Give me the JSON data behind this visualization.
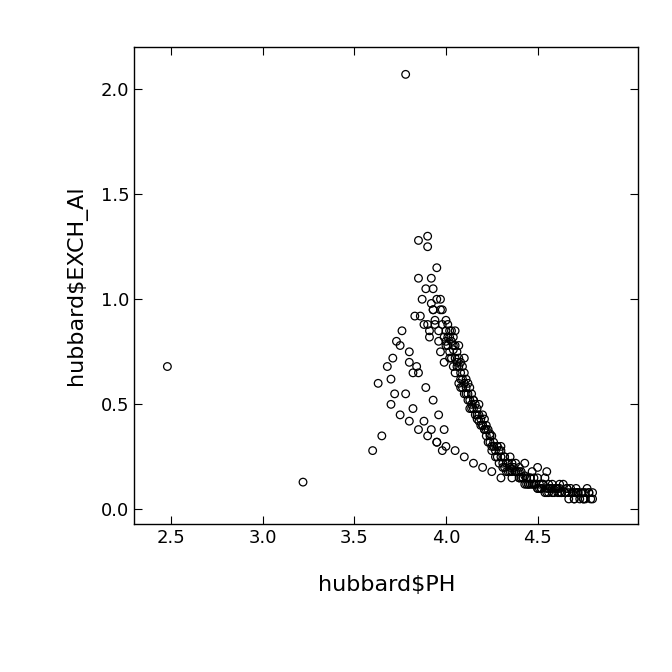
{
  "xlabel": "hubbard$PH",
  "ylabel": "hubbard$EXCH_Al",
  "xlim": [
    2.3,
    5.05
  ],
  "ylim": [
    -0.07,
    2.2
  ],
  "xticks": [
    2.5,
    3.0,
    3.5,
    4.0,
    4.5
  ],
  "yticks": [
    0.0,
    0.5,
    1.0,
    1.5,
    2.0
  ],
  "background_color": "#ffffff",
  "marker_facecolor": "none",
  "marker_edgecolor": "#000000",
  "marker_size": 5.5,
  "marker_linewidth": 0.9,
  "xlabel_fontsize": 16,
  "ylabel_fontsize": 16,
  "tick_fontsize": 13,
  "x": [
    2.48,
    3.22,
    3.6,
    3.65,
    3.7,
    3.72,
    3.75,
    3.78,
    3.8,
    3.82,
    3.83,
    3.85,
    3.85,
    3.87,
    3.88,
    3.89,
    3.9,
    3.9,
    3.91,
    3.92,
    3.92,
    3.93,
    3.93,
    3.94,
    3.95,
    3.95,
    3.96,
    3.97,
    3.97,
    3.98,
    3.98,
    3.99,
    4.0,
    4.0,
    4.0,
    4.01,
    4.01,
    4.02,
    4.02,
    4.02,
    4.03,
    4.03,
    4.04,
    4.04,
    4.05,
    4.05,
    4.05,
    4.06,
    4.06,
    4.07,
    4.07,
    4.07,
    4.08,
    4.08,
    4.09,
    4.09,
    4.1,
    4.1,
    4.1,
    4.11,
    4.11,
    4.12,
    4.12,
    4.13,
    4.13,
    4.14,
    4.14,
    4.15,
    4.15,
    4.16,
    4.17,
    4.17,
    4.18,
    4.18,
    4.19,
    4.2,
    4.2,
    4.21,
    4.21,
    4.22,
    4.22,
    4.23,
    4.24,
    4.24,
    4.25,
    4.25,
    4.26,
    4.27,
    4.28,
    4.28,
    4.29,
    4.3,
    4.3,
    4.31,
    4.32,
    4.32,
    4.33,
    4.34,
    4.35,
    4.35,
    4.36,
    4.37,
    4.38,
    4.39,
    4.4,
    4.4,
    4.41,
    4.42,
    4.43,
    4.43,
    4.44,
    4.45,
    4.46,
    4.47,
    4.47,
    4.48,
    4.49,
    4.5,
    4.5,
    4.51,
    4.52,
    4.53,
    4.54,
    4.55,
    4.56,
    4.57,
    4.58,
    4.59,
    4.6,
    4.61,
    4.62,
    4.63,
    4.64,
    4.65,
    4.66,
    4.67,
    4.68,
    4.69,
    4.7,
    4.71,
    4.72,
    4.73,
    4.74,
    4.75,
    4.76,
    4.77,
    4.78,
    4.79,
    4.8,
    3.63,
    3.68,
    3.71,
    3.73,
    3.76,
    3.8,
    3.84,
    3.86,
    3.9,
    3.91,
    3.93,
    3.94,
    3.96,
    3.97,
    3.99,
    4.0,
    4.01,
    4.03,
    4.04,
    4.06,
    4.08,
    4.09,
    4.11,
    4.13,
    4.15,
    4.17,
    4.19,
    4.21,
    4.23,
    4.25,
    4.27,
    4.29,
    4.31,
    4.33,
    4.36,
    4.38,
    4.41,
    4.44,
    4.46,
    4.48,
    4.51,
    4.53,
    4.56,
    4.58,
    4.61,
    4.63,
    4.66,
    4.69,
    4.72,
    4.75,
    4.78,
    3.78,
    3.82,
    3.88,
    3.92,
    3.95,
    3.98,
    4.02,
    4.05,
    4.08,
    4.12,
    4.16,
    4.2,
    4.24,
    4.28,
    4.32,
    4.36,
    4.4,
    4.44,
    4.48,
    4.52,
    4.56,
    4.6,
    4.65,
    4.7,
    3.85,
    3.89,
    3.93,
    3.96,
    3.99,
    4.04,
    4.07,
    4.1,
    4.14,
    4.18,
    4.22,
    4.26,
    4.3,
    4.34,
    4.38,
    4.42,
    4.46,
    4.5,
    4.54,
    4.58,
    4.62,
    4.67,
    4.71,
    4.76,
    4.43,
    4.55,
    4.62,
    4.72,
    3.7,
    3.75,
    3.8,
    3.85,
    3.9,
    3.95,
    4.0,
    4.05,
    4.1,
    4.15,
    4.2,
    4.25,
    4.3,
    4.35,
    4.4,
    4.45,
    4.5,
    4.55,
    4.6,
    4.65,
    4.7,
    4.75,
    4.8
  ],
  "y": [
    0.68,
    0.13,
    0.28,
    0.35,
    0.62,
    0.55,
    0.78,
    2.07,
    0.7,
    0.65,
    0.92,
    1.1,
    1.28,
    1.0,
    0.88,
    1.05,
    1.25,
    1.3,
    0.85,
    0.98,
    1.1,
    0.95,
    1.05,
    0.9,
    1.0,
    1.15,
    0.85,
    0.95,
    1.0,
    0.88,
    0.95,
    0.82,
    0.8,
    0.85,
    0.9,
    0.78,
    0.88,
    0.75,
    0.82,
    0.85,
    0.8,
    0.85,
    0.78,
    0.82,
    0.72,
    0.78,
    0.85,
    0.7,
    0.75,
    0.68,
    0.72,
    0.78,
    0.65,
    0.7,
    0.62,
    0.68,
    0.6,
    0.65,
    0.72,
    0.58,
    0.62,
    0.55,
    0.6,
    0.52,
    0.58,
    0.5,
    0.55,
    0.48,
    0.52,
    0.5,
    0.43,
    0.48,
    0.45,
    0.5,
    0.43,
    0.4,
    0.45,
    0.38,
    0.43,
    0.4,
    0.35,
    0.38,
    0.32,
    0.36,
    0.3,
    0.35,
    0.3,
    0.28,
    0.25,
    0.3,
    0.28,
    0.25,
    0.3,
    0.22,
    0.2,
    0.25,
    0.22,
    0.18,
    0.2,
    0.25,
    0.18,
    0.2,
    0.22,
    0.18,
    0.15,
    0.2,
    0.18,
    0.15,
    0.12,
    0.16,
    0.15,
    0.12,
    0.15,
    0.12,
    0.18,
    0.15,
    0.12,
    0.15,
    0.2,
    0.12,
    0.1,
    0.12,
    0.15,
    0.1,
    0.12,
    0.1,
    0.12,
    0.08,
    0.1,
    0.08,
    0.1,
    0.08,
    0.12,
    0.08,
    0.1,
    0.08,
    0.1,
    0.08,
    0.08,
    0.1,
    0.08,
    0.05,
    0.08,
    0.05,
    0.08,
    0.1,
    0.08,
    0.05,
    0.08,
    0.6,
    0.68,
    0.72,
    0.8,
    0.85,
    0.75,
    0.68,
    0.92,
    0.88,
    0.82,
    0.95,
    0.88,
    0.8,
    0.75,
    0.7,
    0.78,
    0.82,
    0.72,
    0.76,
    0.68,
    0.62,
    0.58,
    0.55,
    0.48,
    0.52,
    0.45,
    0.4,
    0.38,
    0.32,
    0.28,
    0.25,
    0.22,
    0.2,
    0.18,
    0.15,
    0.18,
    0.15,
    0.12,
    0.15,
    0.12,
    0.1,
    0.12,
    0.1,
    0.08,
    0.1,
    0.08,
    0.1,
    0.08,
    0.08,
    0.05,
    0.08,
    0.55,
    0.48,
    0.42,
    0.38,
    0.32,
    0.28,
    0.72,
    0.65,
    0.58,
    0.52,
    0.45,
    0.4,
    0.35,
    0.3,
    0.25,
    0.22,
    0.18,
    0.15,
    0.12,
    0.1,
    0.08,
    0.1,
    0.08,
    0.05,
    0.65,
    0.58,
    0.52,
    0.45,
    0.38,
    0.68,
    0.6,
    0.55,
    0.48,
    0.42,
    0.38,
    0.32,
    0.28,
    0.22,
    0.18,
    0.15,
    0.12,
    0.1,
    0.08,
    0.1,
    0.08,
    0.05,
    0.08,
    0.05,
    0.22,
    0.18,
    0.12,
    0.08,
    0.5,
    0.45,
    0.42,
    0.38,
    0.35,
    0.32,
    0.3,
    0.28,
    0.25,
    0.22,
    0.2,
    0.18,
    0.15,
    0.18,
    0.15,
    0.12,
    0.1,
    0.08,
    0.1,
    0.08,
    0.05,
    0.08,
    0.05
  ]
}
